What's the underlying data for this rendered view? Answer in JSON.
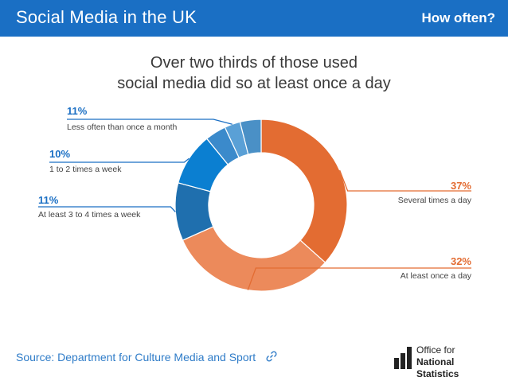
{
  "header": {
    "title": "Social Media in the UK",
    "right_label": "How often?",
    "background": "#1a6fc4"
  },
  "footer": {
    "source": "Source: Department for Culture Media and Sport",
    "link_icon": "link-icon",
    "logo_line1": "Office for",
    "logo_line2": "National Statistics"
  },
  "chart_data": {
    "type": "pie",
    "variant": "donut",
    "title_lines": [
      "Over two thirds of those used",
      "social media did so at least once a day"
    ],
    "slices": [
      {
        "label": "Several times a day",
        "value": 37,
        "display": "37%",
        "color": "#e36c32",
        "label_color": "#e36c32"
      },
      {
        "label": "At least once a day",
        "value": 32,
        "display": "32%",
        "color": "#ec8a5b",
        "label_color": "#e36c32"
      },
      {
        "label": "At least 3 to 4 times a week",
        "value": 11,
        "display": "11%",
        "color": "#1f6fae",
        "label_color": "#1a6fc4"
      },
      {
        "label": "1 to 2 times a week",
        "value": 10,
        "display": "10%",
        "color": "#0b7fd1",
        "label_color": "#1a6fc4"
      },
      {
        "label": "Less often than once a month",
        "value": 11,
        "display": "11%",
        "color": "#4d97d0",
        "label_color": "#1a6fc4",
        "sub_segments": [
          4,
          3,
          4
        ],
        "sub_colors": [
          "#3b8acb",
          "#5aa0d6",
          "#4a90c6"
        ]
      }
    ]
  }
}
